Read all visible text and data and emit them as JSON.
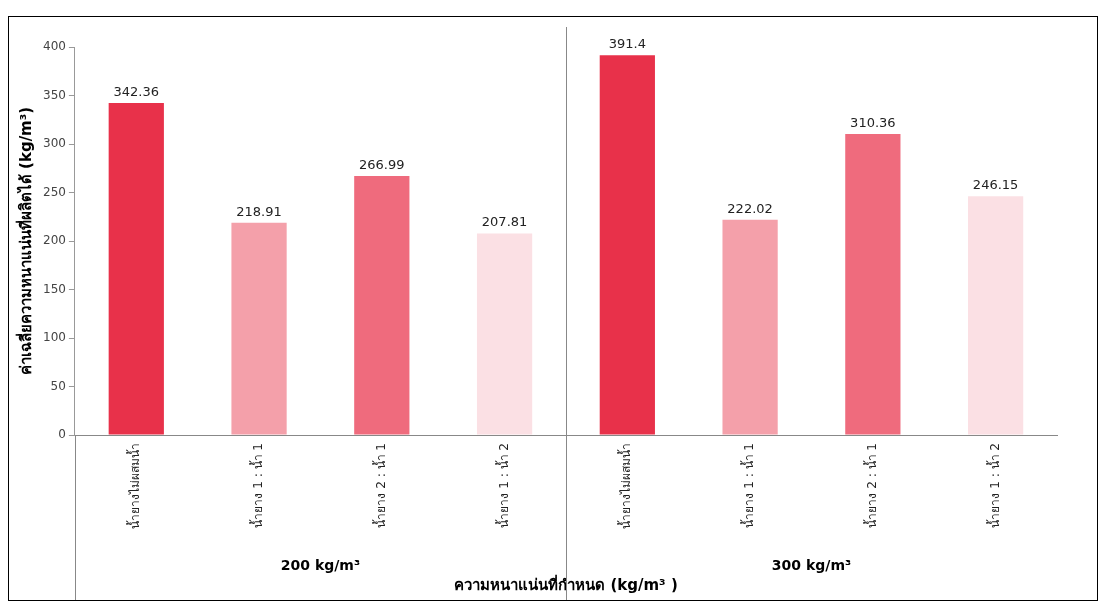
{
  "chart_data": {
    "type": "bar",
    "categories": [
      "น้ำยางไม่ผสมน้ำ",
      "น้ำยาง 1 : น้ำ 1",
      "น้ำยาง 2 : น้ำ 1",
      "น้ำยาง 1 : น้ำ 2",
      "น้ำยางไม่ผสมน้ำ",
      "น้ำยาง 1 : น้ำ 1",
      "น้ำยาง 2 : น้ำ 1",
      "น้ำยาง 1 : น้ำ 2"
    ],
    "values": [
      342.36,
      218.91,
      266.99,
      207.81,
      391.4,
      222.02,
      310.36,
      246.15
    ],
    "colors": [
      "#e8314a",
      "#f4a0aa",
      "#ef6b7d",
      "#fbe0e4",
      "#e8314a",
      "#f4a0aa",
      "#ef6b7d",
      "#fbe0e4"
    ],
    "data_labels": true,
    "ylabel": "ค่าเฉลี่ยความหนาแน่นที่ผลิตได้ (kg/m³)",
    "xlabel": "ความหนาแน่นที่กำหนด (kg/m³ )",
    "annotations": [
      "200 kg/m³",
      "300 kg/m³"
    ],
    "ylim": [
      0,
      400
    ],
    "yticks": [
      0,
      50,
      100,
      150,
      200,
      250,
      300,
      350,
      400
    ],
    "grid": false,
    "legend": false
  }
}
